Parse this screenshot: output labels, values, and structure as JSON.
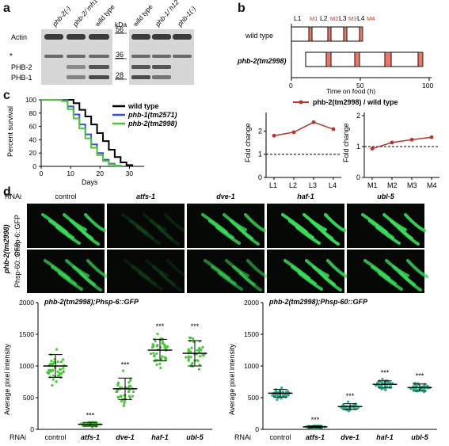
{
  "panels": {
    "a": "a",
    "b": "b",
    "c": "c",
    "d": "d"
  },
  "panel_a": {
    "lanes": [
      "phb-2(-)",
      "phb-2/ mh1",
      "wild type",
      "wild type",
      "phb-1/ h12",
      "phb-1(-)"
    ],
    "kda_label": "kDa",
    "markers": [
      "56",
      "36",
      "28"
    ],
    "row_labels": [
      "Actin",
      "*",
      "PHB-2",
      "PHB-1"
    ]
  },
  "panel_b": {
    "stages": [
      "L1",
      "M1",
      "L2",
      "M2",
      "L3",
      "M3",
      "L4",
      "M4"
    ],
    "rows": [
      "wild type",
      "phb-2(tm2998)"
    ],
    "xticks": [
      "0",
      "50",
      "100"
    ],
    "xlabel": "Time on food (h)",
    "legend": "phb-2(tm2998) / wild type",
    "colors": {
      "molt": "#e8786a",
      "line": "#b5352c"
    }
  },
  "chart_data": [
    {
      "type": "line",
      "panel": "b-left",
      "categories": [
        "L1",
        "L2",
        "L3",
        "L4"
      ],
      "series": [
        {
          "name": "phb-2(tm2998) / wild type",
          "values": [
            1.8,
            1.95,
            2.38,
            2.08
          ]
        }
      ],
      "ylabel": "Fold change",
      "yticks": [
        "0",
        "1",
        "2"
      ],
      "ylim": [
        0,
        2.8
      ],
      "reference_line": 1
    },
    {
      "type": "line",
      "panel": "b-right",
      "categories": [
        "M1",
        "M2",
        "M3",
        "M4"
      ],
      "series": [
        {
          "name": "phb-2(tm2998) / wild type",
          "values": [
            0.93,
            1.13,
            1.22,
            1.3
          ]
        }
      ],
      "ylabel": "Fold change",
      "yticks": [
        "0",
        "1",
        "2"
      ],
      "ylim": [
        0,
        2.1
      ],
      "reference_line": 1
    },
    {
      "type": "line",
      "panel": "c",
      "ylabel": "Percent survival",
      "xlabel": "Days",
      "yticks": [
        "0",
        "20",
        "40",
        "60",
        "80",
        "100"
      ],
      "xticks": [
        "0",
        "10",
        "20",
        "30"
      ],
      "xlim": [
        0,
        35
      ],
      "ylim": [
        0,
        100
      ],
      "series": [
        {
          "name": "wild type",
          "color": "#000000",
          "x": [
            0,
            9,
            11,
            13,
            15,
            17,
            19,
            21,
            23,
            25,
            27,
            29,
            31
          ],
          "y": [
            100,
            100,
            95,
            85,
            75,
            63,
            50,
            38,
            25,
            14,
            6,
            2,
            0
          ]
        },
        {
          "name": "phb-1(tm2571)",
          "color": "#3a4ec6",
          "x": [
            0,
            7,
            9,
            11,
            13,
            15,
            17,
            19,
            21,
            23,
            25,
            27
          ],
          "y": [
            100,
            100,
            90,
            78,
            63,
            48,
            33,
            20,
            10,
            4,
            1,
            0
          ]
        },
        {
          "name": "phb-2(tm2998)",
          "color": "#4cc43c",
          "x": [
            0,
            7,
            9,
            11,
            13,
            15,
            17,
            19,
            21,
            23,
            25,
            27
          ],
          "y": [
            100,
            98,
            86,
            72,
            57,
            42,
            28,
            17,
            8,
            3,
            1,
            0
          ]
        }
      ]
    },
    {
      "type": "scatter",
      "panel": "d-left",
      "title": "phb-2(tm2998);Phsp-6::GFP",
      "ylabel": "Average pixel intensity",
      "xlabel_prefix": "RNAi",
      "categories": [
        "control",
        "atfs-1",
        "dve-1",
        "haf-1",
        "ubl-5"
      ],
      "means": [
        1000,
        80,
        640,
        1250,
        1200
      ],
      "spread": [
        180,
        30,
        170,
        170,
        200
      ],
      "significance": [
        "",
        "***",
        "***",
        "***",
        "***"
      ],
      "yticks": [
        "0",
        "500",
        "1000",
        "1500",
        "2000"
      ],
      "ylim": [
        0,
        2000
      ],
      "color": "#4cc43c"
    },
    {
      "type": "scatter",
      "panel": "d-right",
      "title": "phb-2(tm2998);Phsp-60::GFP",
      "ylabel": "Average pixel intensity",
      "xlabel_prefix": "RNAi",
      "categories": [
        "control",
        "atfs-1",
        "dve-1",
        "haf-1",
        "ubl-5"
      ],
      "means": [
        570,
        40,
        360,
        710,
        660
      ],
      "spread": [
        60,
        15,
        45,
        55,
        55
      ],
      "significance": [
        "",
        "***",
        "***",
        "***",
        "***"
      ],
      "yticks": [
        "0",
        "500",
        "1000",
        "1500",
        "2000"
      ],
      "ylim": [
        0,
        2000
      ],
      "color": "#2fae8e"
    }
  ],
  "panel_d_images": {
    "rnai_label": "RNAi",
    "columns": [
      "control",
      "atfs-1",
      "dve-1",
      "haf-1",
      "ubl-5"
    ],
    "strain": "phb-2(tm2998)",
    "rows": [
      "Phsp-6::GFP",
      "Phsp-60::GFP"
    ],
    "brightness": [
      [
        0.85,
        0.12,
        0.8,
        0.95,
        0.9
      ],
      [
        0.7,
        0.1,
        0.55,
        0.85,
        0.8
      ]
    ]
  }
}
